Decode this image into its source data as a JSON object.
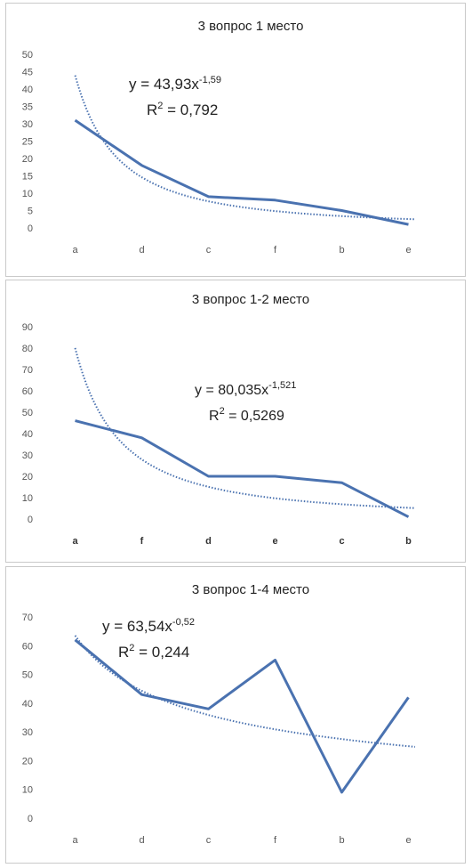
{
  "chart_data": [
    {
      "type": "line",
      "title": "3 вопрос 1 место",
      "categories": [
        "a",
        "d",
        "c",
        "f",
        "b",
        "e"
      ],
      "series": [
        {
          "values": [
            31,
            18,
            9,
            8,
            5,
            1
          ]
        }
      ],
      "trendline": {
        "type": "power",
        "a": 43.93,
        "b": -1.59
      },
      "equation": {
        "lead": "y = 43,93x",
        "exp": "-1,59",
        "r2_lead": "R",
        "r2_exp": "2",
        "r2_val": " = 0,792"
      },
      "ylim": [
        0,
        50
      ],
      "yticks": [
        0,
        5,
        10,
        15,
        20,
        25,
        30,
        35,
        40,
        45,
        50
      ],
      "bold_categories": false,
      "grid": false,
      "color": "#4a72b0"
    },
    {
      "type": "line",
      "title": "3 вопрос 1-2 место",
      "categories": [
        "a",
        "f",
        "d",
        "e",
        "c",
        "b"
      ],
      "series": [
        {
          "values": [
            46,
            38,
            20,
            20,
            17,
            1
          ]
        }
      ],
      "trendline": {
        "type": "power",
        "a": 80.035,
        "b": -1.521
      },
      "equation": {
        "lead": "y = 80,035x",
        "exp": "-1,521",
        "r2_lead": "R",
        "r2_exp": "2",
        "r2_val": " = 0,5269"
      },
      "ylim": [
        0,
        90
      ],
      "yticks": [
        0,
        10,
        20,
        30,
        40,
        50,
        60,
        70,
        80,
        90
      ],
      "bold_categories": true,
      "grid": false,
      "color": "#4a72b0"
    },
    {
      "type": "line",
      "title": "3 вопрос 1-4 место",
      "categories": [
        "a",
        "d",
        "c",
        "f",
        "b",
        "e"
      ],
      "series": [
        {
          "values": [
            62,
            43,
            38,
            55,
            9,
            42
          ]
        }
      ],
      "trendline": {
        "type": "power",
        "a": 63.54,
        "b": -0.52
      },
      "equation": {
        "lead": "y = 63,54x",
        "exp": "-0,52",
        "r2_lead": "R",
        "r2_exp": "2",
        "r2_val": " = 0,244"
      },
      "ylim": [
        0,
        70
      ],
      "yticks": [
        0,
        10,
        20,
        30,
        40,
        50,
        60,
        70
      ],
      "bold_categories": false,
      "grid": false,
      "color": "#4a72b0"
    }
  ]
}
